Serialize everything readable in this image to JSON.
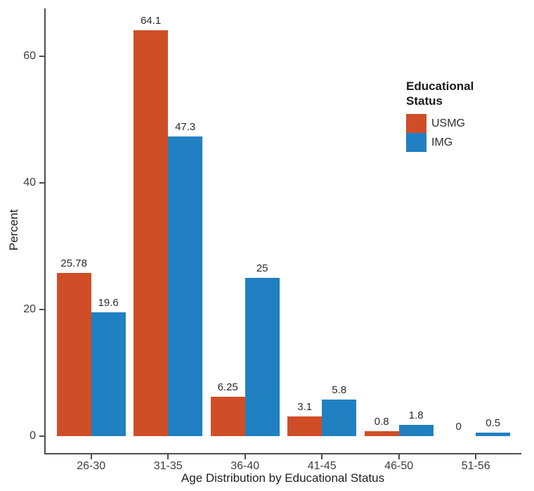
{
  "chart_data": {
    "type": "bar",
    "title": "",
    "xlabel": "Age Distribution by Educational Status",
    "ylabel": "Percent",
    "categories": [
      "26-30",
      "31-35",
      "36-40",
      "41-45",
      "46-50",
      "51-56"
    ],
    "series": [
      {
        "name": "USMG",
        "color": "#cf4e27",
        "values": [
          25.78,
          64.1,
          6.25,
          3.1,
          0.8,
          0
        ],
        "labels": [
          "25.78",
          "64.1",
          "6.25",
          "3.1",
          "0.8",
          "0"
        ]
      },
      {
        "name": "IMG",
        "color": "#2080c2",
        "values": [
          19.6,
          47.3,
          25,
          5.8,
          1.8,
          0.5
        ],
        "labels": [
          "19.6",
          "47.3",
          "25",
          "5.8",
          "1.8",
          "0.5"
        ]
      }
    ],
    "y_ticks": [
      0,
      20,
      40,
      60
    ],
    "ylim": [
      0,
      67.3
    ],
    "grid": false,
    "legend": {
      "position": "right",
      "title_lines": [
        "Educational",
        "Status"
      ]
    }
  }
}
